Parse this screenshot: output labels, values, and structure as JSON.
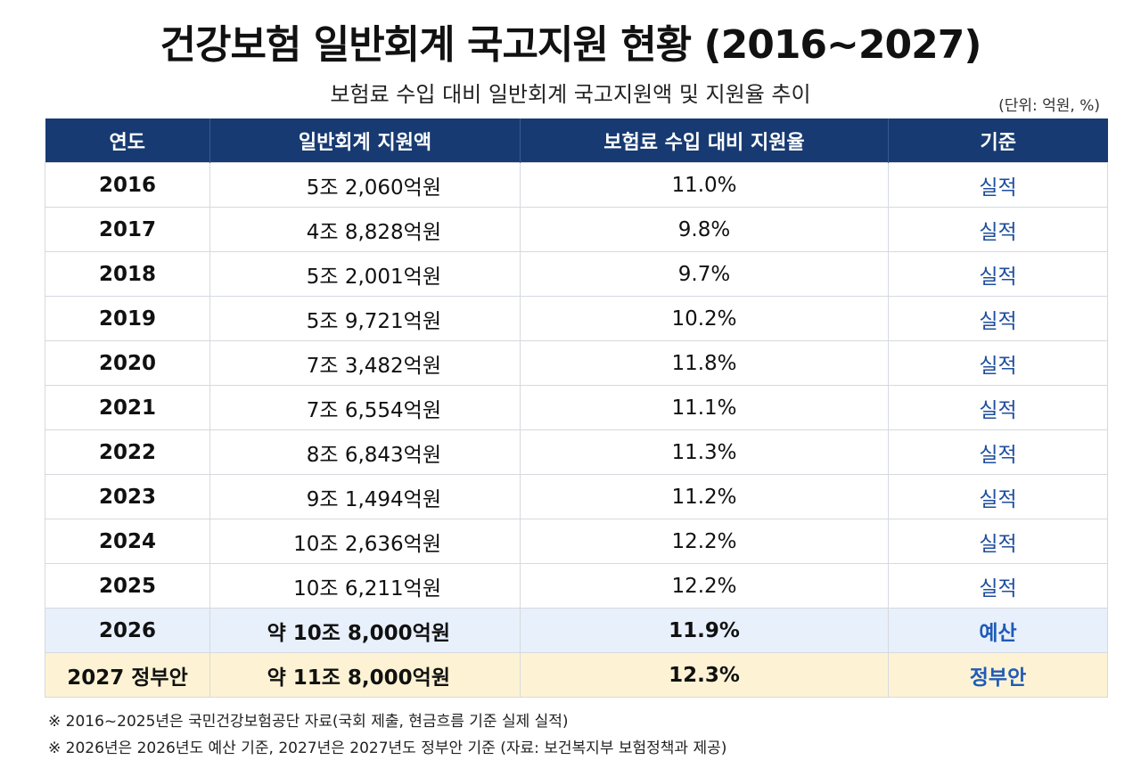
{
  "title": "건강보험 일반회계 국고지원 현황 (2016~2027)",
  "subtitle": "보험료 수입 대비 일반회계 국고지원액 및 지원율 추이",
  "unit": "(단위: 억원, %)",
  "table": {
    "headers": [
      "연도",
      "일반회계 지원액",
      "보험료 수입 대비 지원율",
      "기준"
    ],
    "rows": [
      {
        "year": "2016",
        "amount": "5조 2,060억원",
        "rate": "11.0%",
        "basis": "실적"
      },
      {
        "year": "2017",
        "amount": "4조 8,828억원",
        "rate": "9.8%",
        "basis": "실적"
      },
      {
        "year": "2018",
        "amount": "5조 2,001억원",
        "rate": "9.7%",
        "basis": "실적"
      },
      {
        "year": "2019",
        "amount": "5조 9,721억원",
        "rate": "10.2%",
        "basis": "실적"
      },
      {
        "year": "2020",
        "amount": "7조 3,482억원",
        "rate": "11.8%",
        "basis": "실적"
      },
      {
        "year": "2021",
        "amount": "7조 6,554억원",
        "rate": "11.1%",
        "basis": "실적"
      },
      {
        "year": "2022",
        "amount": "8조 6,843억원",
        "rate": "11.3%",
        "basis": "실적"
      },
      {
        "year": "2023",
        "amount": "9조 1,494억원",
        "rate": "11.2%",
        "basis": "실적"
      },
      {
        "year": "2024",
        "amount": "10조 2,636억원",
        "rate": "12.2%",
        "basis": "실적"
      },
      {
        "year": "2025",
        "amount": "10조 6,211억원",
        "rate": "12.2%",
        "basis": "실적"
      },
      {
        "year": "2026",
        "amount": "약 10조 8,000억원",
        "rate": "11.9%",
        "basis": "예산"
      },
      {
        "year": "2027 정부안",
        "amount": "약 11조 8,000억원",
        "rate": "12.3%",
        "basis": "정부안"
      }
    ]
  },
  "notes": [
    "※ 2016~2025년은 국민건강보험공단 자료(국회 제출, 현금흐름 기준 실제 실적)",
    "※ 2026년은 2026년도 예산 기준, 2027년은 2027년도 정부안 기준 (자료: 보건복지부 보험정책과 제공)"
  ],
  "colors": {
    "header_bg": "#173a72",
    "basis_text": "#1f4e9c",
    "budget_row_bg": "#e8f0fb",
    "proposal_row_bg": "#fdf3d4"
  }
}
